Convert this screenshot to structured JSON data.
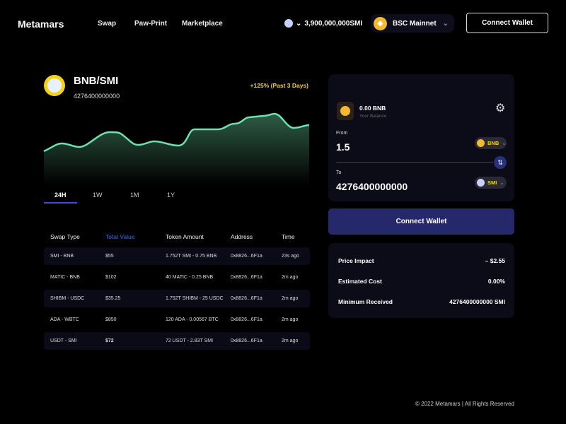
{
  "header": {
    "logo": "Metamars",
    "nav": [
      "Swap",
      "Paw-Print",
      "Marketplace"
    ],
    "balance": "3,900,000,000SMI",
    "network": "BSC Mainnet",
    "connect_label": "Connect Wallet"
  },
  "pair": {
    "name": "BNB/SMI",
    "value": "4276400000000",
    "change": "+125% (Past 3 Days)",
    "tabs": [
      "24H",
      "1W",
      "1M",
      "1Y"
    ]
  },
  "table": {
    "headers": [
      "Swap Type",
      "Total Value",
      "Token Amount",
      "Address",
      "Time"
    ],
    "rows": [
      [
        "SMI - BNB",
        "$55",
        "1.752T SMI - 0.75 BNB",
        "0x8826...6F1a",
        "23s ago"
      ],
      [
        "MATIC - BNB",
        "$102",
        "40 MATIC - 0.25 BNB",
        "0x8826...6F1a",
        "2m ago"
      ],
      [
        "SHIBM - USDC",
        "$35.25",
        "1.752T SHIBM - 25 USDC",
        "0x8826...6F1a",
        "2m ago"
      ],
      [
        "ADA - WBTC",
        "$850",
        "120 ADA - 0.00567 BTC",
        "0x8826...6F1a",
        "2m ago"
      ],
      [
        "USDT - SMI",
        "$72",
        "72 USDT - 2.83T SMI",
        "0x8826...6F1a",
        "2m ago"
      ]
    ]
  },
  "swap": {
    "balance": "0.00 BNB",
    "balance_label": "Your Balance",
    "from_label": "From",
    "from_value": "1.5",
    "from_token": "BNB",
    "to_label": "To",
    "to_value": "4276400000000",
    "to_token": "SMI",
    "connect_label": "Connect Wallet"
  },
  "summary": [
    {
      "label": "Price Impact",
      "value": "– $2.55"
    },
    {
      "label": "Estimated Cost",
      "value": "0.00%"
    },
    {
      "label": "Minimum Received",
      "value": "4276400000000 SMI"
    }
  ],
  "footer": "© 2022 Metamars | All Rights Reserved"
}
